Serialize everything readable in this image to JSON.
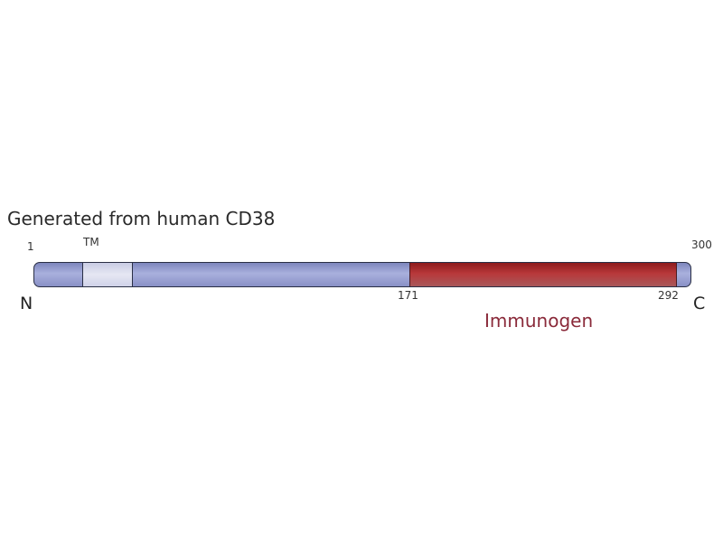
{
  "title": "Generated from human CD38",
  "protein": {
    "length": 300,
    "start_label": "1",
    "end_label": "300",
    "n_terminus": "N",
    "c_terminus": "C",
    "base_color": "#9aa1d4"
  },
  "domains": [
    {
      "label": "TM",
      "start": 22,
      "end": 44,
      "color": "#dcdeef"
    },
    {
      "label": "Immunogen",
      "start": 171,
      "end": 292,
      "start_label": "171",
      "end_label": "292",
      "color": "#a83234"
    }
  ]
}
